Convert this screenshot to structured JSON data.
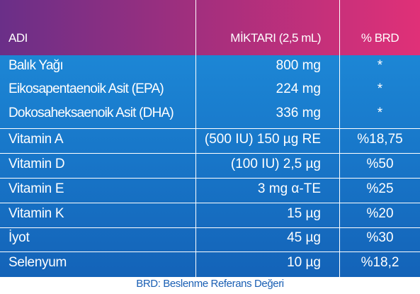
{
  "header": {
    "name": "ADI",
    "amount": "MİKTARI (2,5 mL)",
    "brd": "% BRD"
  },
  "rows": [
    {
      "name": "Balık Yağı",
      "amount": "800 mg",
      "brd": "*"
    },
    {
      "name": "Eikosapentaenoik Asit (EPA)",
      "amount": "224 mg",
      "brd": "*"
    },
    {
      "name": "Dokosaheksaenoik Asit (DHA)",
      "amount": "336 mg",
      "brd": "*"
    },
    {
      "name": "Vitamin A",
      "amount": "(500 IU) 150 µg RE",
      "brd": "%18,75"
    },
    {
      "name": "Vitamin D",
      "amount": "(100 IU) 2,5 µg",
      "brd": "%50"
    },
    {
      "name": "Vitamin E",
      "amount": "3 mg α-TE",
      "brd": "%25"
    },
    {
      "name": "Vitamin K",
      "amount": "15 µg",
      "brd": "%20"
    },
    {
      "name": "İyot",
      "amount": "45 µg",
      "brd": "%30"
    },
    {
      "name": "Selenyum",
      "amount": "10 µg",
      "brd": "%18,2"
    }
  ],
  "footer": "BRD: Beslenme Referans Değeri",
  "colors": {
    "header_gradient_start": "#6a2f88",
    "header_gradient_end": "#e03078",
    "body_blue": "#1877c9",
    "footer_text": "#1a5fb4"
  }
}
